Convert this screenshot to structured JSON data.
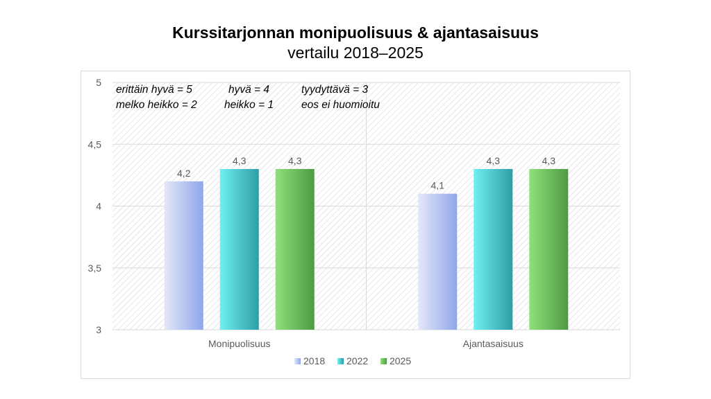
{
  "chart_data": {
    "type": "bar",
    "title": "Kurssitarjonnan monipuolisuus & ajantasaisuus",
    "subtitle": "vertailu 2018–2025",
    "categories": [
      "Monipuolisuus",
      "Ajantasaisuus"
    ],
    "series": [
      {
        "name": "2018",
        "values": [
          4.2,
          4.1
        ],
        "labels": [
          "4,2",
          "4,1"
        ]
      },
      {
        "name": "2022",
        "values": [
          4.3,
          4.3
        ],
        "labels": [
          "4,3",
          "4,3"
        ]
      },
      {
        "name": "2025",
        "values": [
          4.3,
          4.3
        ],
        "labels": [
          "4,3",
          "4,3"
        ]
      }
    ],
    "ylim": [
      3,
      5
    ],
    "yticks": [
      3,
      3.5,
      4,
      4.5,
      5
    ],
    "ytick_labels": [
      "3",
      "3,5",
      "4",
      "4,5",
      "5"
    ],
    "grid": true,
    "legend": "bottom",
    "colors": {
      "2018": [
        "#e3e8f7",
        "#8fa6ea"
      ],
      "2022": [
        "#6ff0f0",
        "#2d9ea4"
      ],
      "2025": [
        "#8fe07a",
        "#4f9a45"
      ]
    },
    "notes": [
      [
        "erittäin hyvä = 5",
        "hyvä = 4",
        "tyydyttävä = 3"
      ],
      [
        "melko heikko = 2",
        "heikko = 1",
        "eos ei huomioitu"
      ]
    ]
  }
}
